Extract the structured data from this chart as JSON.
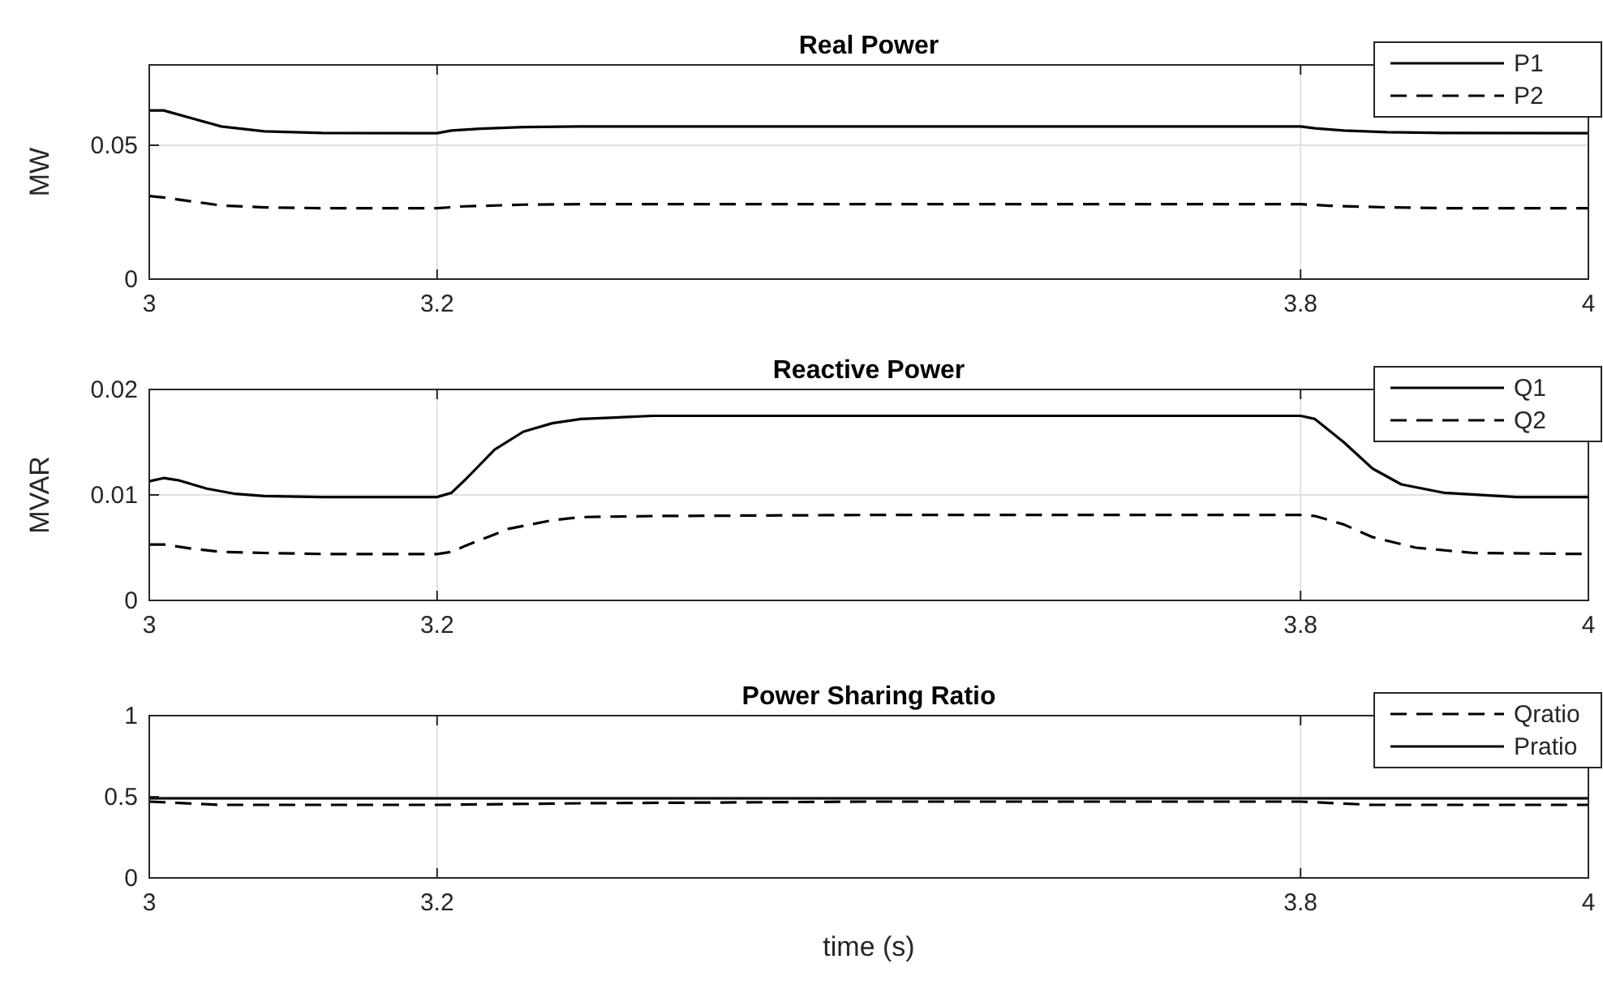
{
  "chart_data": [
    {
      "type": "line",
      "title": "Real Power",
      "ylabel": "MW",
      "xlim": [
        3,
        4
      ],
      "xticks": [
        3,
        3.2,
        3.8,
        4
      ],
      "ylim": [
        0,
        0.08
      ],
      "yticks": [
        0,
        0.05
      ],
      "grid": true,
      "legend": "top right",
      "series": [
        {
          "name": "P1",
          "color": "#000000",
          "line_style": "solid",
          "x": [
            3,
            3.01,
            3.03,
            3.05,
            3.08,
            3.12,
            3.2,
            3.21,
            3.23,
            3.26,
            3.3,
            3.5,
            3.8,
            3.81,
            3.83,
            3.86,
            3.9,
            4
          ],
          "values": [
            0.063,
            0.063,
            0.06,
            0.057,
            0.0552,
            0.0546,
            0.0545,
            0.0555,
            0.0562,
            0.0568,
            0.057,
            0.057,
            0.057,
            0.0563,
            0.0555,
            0.0549,
            0.0546,
            0.0545
          ]
        },
        {
          "name": "P2",
          "color": "#000000",
          "line_style": "dashed",
          "x": [
            3,
            3.01,
            3.03,
            3.05,
            3.08,
            3.12,
            3.2,
            3.22,
            3.26,
            3.3,
            3.5,
            3.8,
            3.82,
            3.86,
            3.9,
            4
          ],
          "values": [
            0.031,
            0.0305,
            0.029,
            0.0275,
            0.0268,
            0.0265,
            0.0265,
            0.0272,
            0.0278,
            0.028,
            0.028,
            0.028,
            0.0274,
            0.0268,
            0.0265,
            0.0265
          ]
        }
      ]
    },
    {
      "type": "line",
      "title": "Reactive Power",
      "ylabel": "MVAR",
      "xlim": [
        3,
        4
      ],
      "xticks": [
        3,
        3.2,
        3.8,
        4
      ],
      "ylim": [
        0,
        0.02
      ],
      "yticks": [
        0,
        0.01,
        0.02
      ],
      "grid": true,
      "legend": "top right",
      "series": [
        {
          "name": "Q1",
          "color": "#000000",
          "line_style": "solid",
          "x": [
            3,
            3.01,
            3.02,
            3.04,
            3.06,
            3.08,
            3.12,
            3.2,
            3.21,
            3.22,
            3.24,
            3.26,
            3.28,
            3.3,
            3.35,
            3.5,
            3.8,
            3.81,
            3.83,
            3.85,
            3.87,
            3.9,
            3.95,
            4
          ],
          "values": [
            0.0113,
            0.0116,
            0.0114,
            0.0106,
            0.0101,
            0.0099,
            0.0098,
            0.0098,
            0.0102,
            0.0115,
            0.0143,
            0.016,
            0.0168,
            0.0172,
            0.0175,
            0.0175,
            0.0175,
            0.0172,
            0.015,
            0.0125,
            0.011,
            0.0102,
            0.0098,
            0.0098
          ]
        },
        {
          "name": "Q2",
          "color": "#000000",
          "line_style": "dashed",
          "x": [
            3,
            3.01,
            3.03,
            3.05,
            3.08,
            3.12,
            3.2,
            3.21,
            3.22,
            3.25,
            3.28,
            3.3,
            3.35,
            3.5,
            3.8,
            3.81,
            3.83,
            3.85,
            3.88,
            3.92,
            4
          ],
          "values": [
            0.0053,
            0.0053,
            0.0049,
            0.0046,
            0.0045,
            0.0044,
            0.0044,
            0.0046,
            0.0052,
            0.0068,
            0.0076,
            0.0079,
            0.008,
            0.0081,
            0.0081,
            0.008,
            0.0072,
            0.006,
            0.005,
            0.0045,
            0.0044
          ]
        }
      ]
    },
    {
      "type": "line",
      "title": "Power Sharing Ratio",
      "xlabel": "time (s)",
      "xlim": [
        3,
        4
      ],
      "xticks": [
        3,
        3.2,
        3.8,
        4
      ],
      "ylim": [
        0,
        1
      ],
      "yticks": [
        0,
        0.5,
        1
      ],
      "grid": true,
      "legend": "top right",
      "series": [
        {
          "name": "Qratio",
          "color": "#000000",
          "line_style": "dashed",
          "x": [
            3,
            3.05,
            3.2,
            3.3,
            3.5,
            3.8,
            3.85,
            4
          ],
          "values": [
            0.47,
            0.45,
            0.45,
            0.46,
            0.47,
            0.47,
            0.45,
            0.45
          ]
        },
        {
          "name": "Pratio",
          "color": "#000000",
          "line_style": "solid",
          "x": [
            3,
            3.5,
            4
          ],
          "values": [
            0.49,
            0.49,
            0.49
          ]
        }
      ]
    }
  ]
}
